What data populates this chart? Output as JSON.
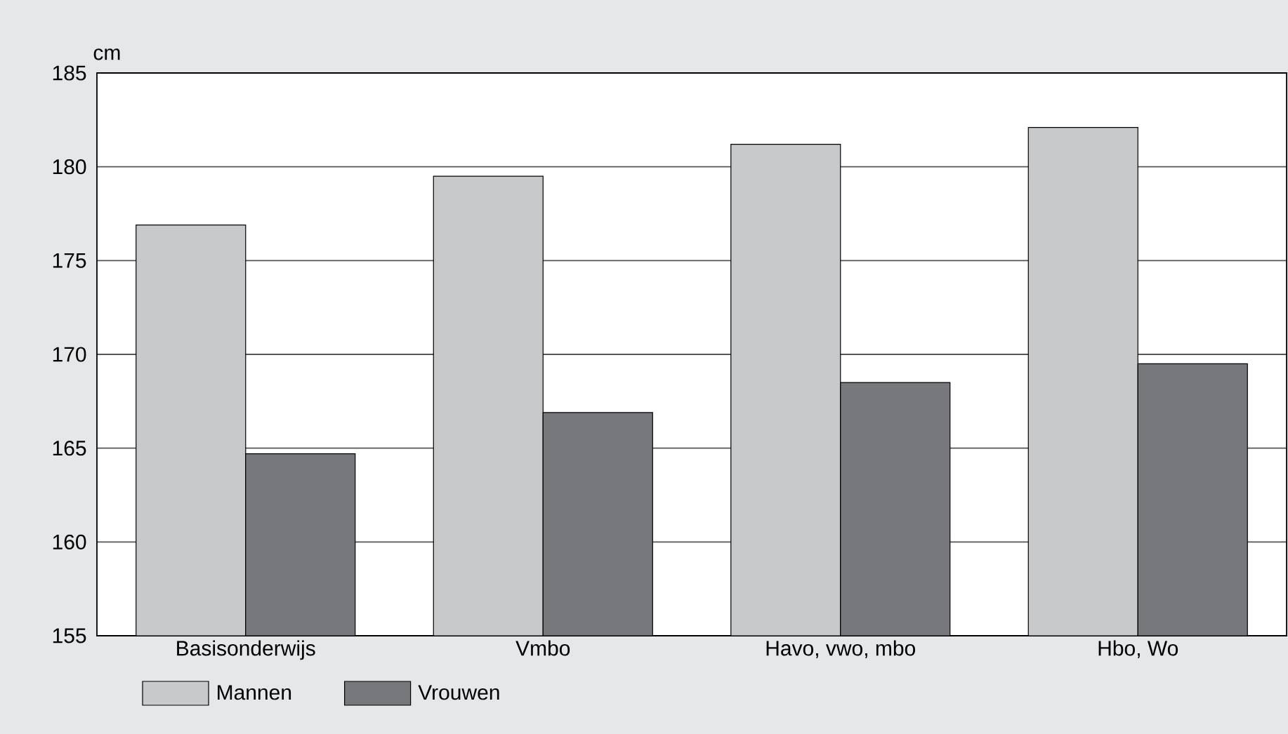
{
  "chart_data": {
    "type": "bar",
    "ylabel": "cm",
    "categories": [
      "Basisonderwijs",
      "Vmbo",
      "Havo, vwo, mbo",
      "Hbo, Wo"
    ],
    "series": [
      {
        "name": "Mannen",
        "color": "#c8c9cb",
        "values": [
          176.9,
          179.5,
          181.2,
          182.1
        ]
      },
      {
        "name": "Vrouwen",
        "color": "#77787b",
        "values": [
          164.7,
          166.9,
          168.5,
          169.5
        ]
      }
    ],
    "ylim": [
      155,
      185
    ],
    "yticks": [
      155,
      160,
      165,
      170,
      175,
      180,
      185
    ],
    "grid": "y",
    "legend": "bottom left"
  }
}
